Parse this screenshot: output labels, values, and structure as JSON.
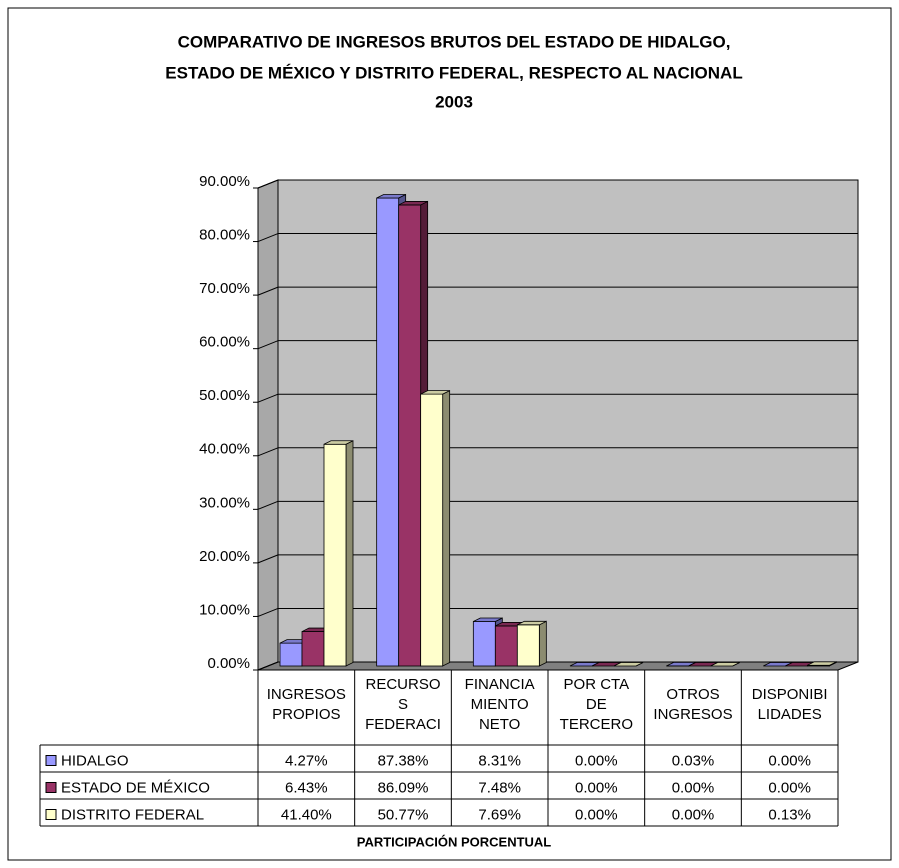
{
  "chart_data": {
    "type": "bar3d",
    "title": [
      "COMPARATIVO DE INGRESOS BRUTOS DEL ESTADO DE HIDALGO,",
      "ESTADO DE MÉXICO Y DISTRITO FEDERAL, RESPECTO AL NACIONAL",
      "2003"
    ],
    "xlabel": "PARTICIPACIÓN PORCENTUAL",
    "categories": [
      [
        "INGRESOS",
        "PROPIOS"
      ],
      [
        "RECURSO",
        "S",
        "FEDERACI"
      ],
      [
        "FINANCIA",
        "MIENTO",
        "NETO"
      ],
      [
        "POR CTA",
        "DE",
        "TERCERO"
      ],
      [
        "OTROS",
        "INGRESOS"
      ],
      [
        "DISPONIBI",
        "LIDADES"
      ]
    ],
    "series": [
      {
        "name": "HIDALGO",
        "color": "#9999ff",
        "values": [
          4.27,
          87.38,
          8.31,
          0,
          0.03,
          0
        ],
        "value_labels": [
          "4.27%",
          "87.38%",
          "8.31%",
          "0.00%",
          "0.03%",
          "0.00%"
        ]
      },
      {
        "name": "ESTADO DE MÉXICO",
        "color": "#993366",
        "values": [
          6.43,
          86.09,
          7.48,
          0,
          0,
          0
        ],
        "value_labels": [
          "6.43%",
          "86.09%",
          "7.48%",
          "0.00%",
          "0.00%",
          "0.00%"
        ]
      },
      {
        "name": "DISTRITO FEDERAL",
        "color": "#ffffcc",
        "values": [
          41.4,
          50.77,
          7.69,
          0,
          0,
          0.13
        ],
        "value_labels": [
          "41.40%",
          "50.77%",
          "7.69%",
          "0.00%",
          "0.00%",
          "0.13%"
        ]
      }
    ],
    "ylim": [
      0,
      90
    ],
    "yticks": [
      {
        "value": 0,
        "label": "0.00%"
      },
      {
        "value": 10,
        "label": "10.00%"
      },
      {
        "value": 20,
        "label": "20.00%"
      },
      {
        "value": 30,
        "label": "30.00%"
      },
      {
        "value": 40,
        "label": "40.00%"
      },
      {
        "value": 50,
        "label": "50.00%"
      },
      {
        "value": 60,
        "label": "60.00%"
      },
      {
        "value": 70,
        "label": "70.00%"
      },
      {
        "value": 80,
        "label": "80.00%"
      },
      {
        "value": 90,
        "label": "90.00%"
      }
    ],
    "grid": true,
    "wall_color": "#c0c0c0"
  }
}
